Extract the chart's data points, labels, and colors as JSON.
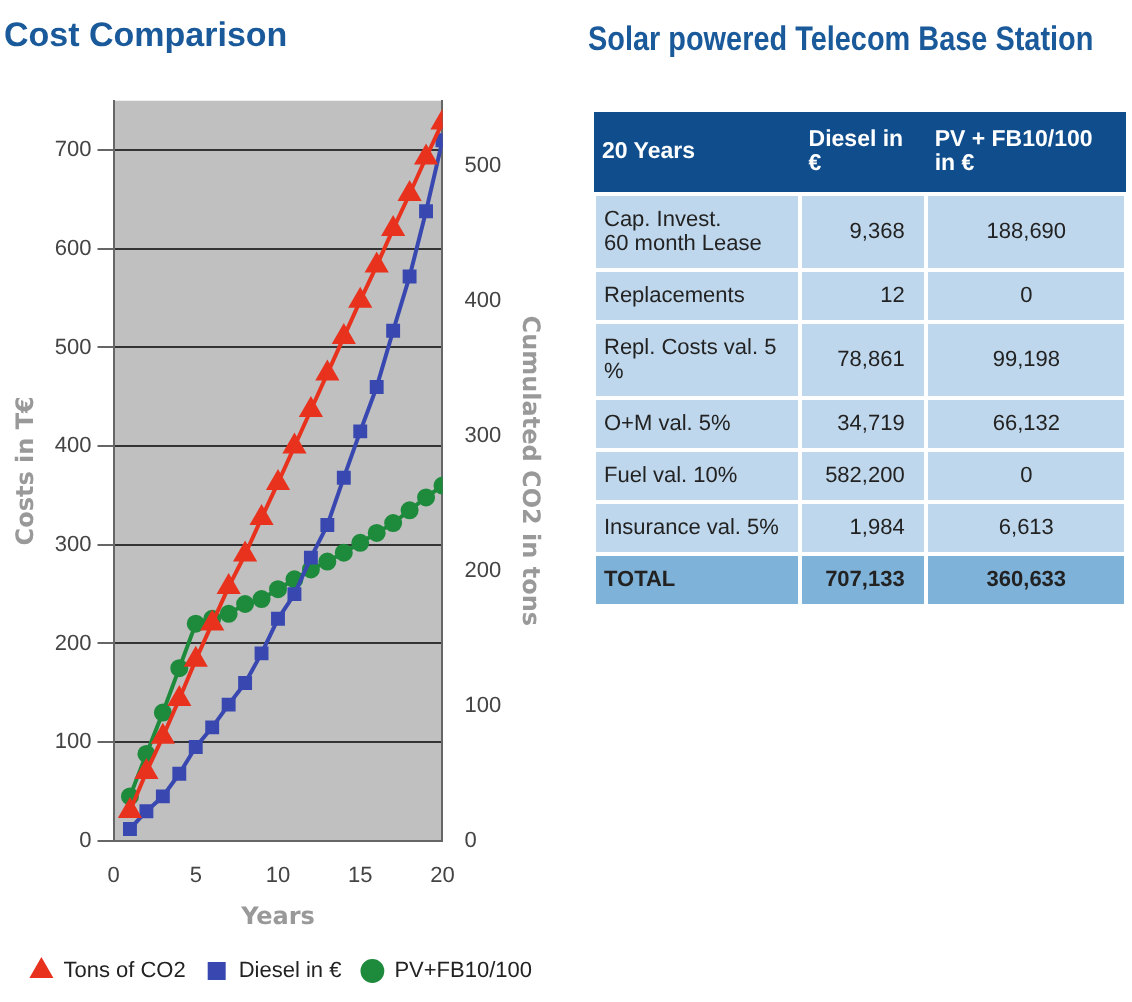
{
  "chart_data": [
    {
      "type": "line",
      "title": "Cost Comparison",
      "xlabel": "Years",
      "ylabel": "Costs in T€",
      "y2label": "Cumulated CO2 in tons",
      "x": [
        1,
        2,
        3,
        4,
        5,
        6,
        7,
        8,
        9,
        10,
        11,
        12,
        13,
        14,
        15,
        16,
        17,
        18,
        19,
        20
      ],
      "series": [
        {
          "name": "PV+FB10/100",
          "color": "#1e8a3c",
          "marker": "circle",
          "values": [
            45,
            88,
            130,
            175,
            220,
            225,
            230,
            240,
            245,
            255,
            265,
            275,
            283,
            292,
            302,
            312,
            322,
            335,
            348,
            360
          ]
        },
        {
          "name": "Diesel in €",
          "color": "#3848b0",
          "marker": "square",
          "values": [
            12,
            30,
            45,
            68,
            95,
            115,
            138,
            160,
            190,
            225,
            250,
            287,
            320,
            368,
            415,
            460,
            517,
            572,
            638,
            710
          ]
        },
        {
          "name": "Tons of CO2",
          "color": "#e8321e",
          "marker": "triangle",
          "axis": "y2",
          "values": [
            22,
            51,
            77,
            105,
            134,
            161,
            188,
            212,
            239,
            265,
            292,
            319,
            346,
            373,
            400,
            426,
            453,
            479,
            506,
            532
          ]
        }
      ],
      "xlim": [
        0,
        20
      ],
      "xticks": [
        0,
        5,
        10,
        15,
        20
      ],
      "ylim": [
        0,
        750
      ],
      "yticks": [
        0,
        100,
        200,
        300,
        400,
        500,
        600,
        700
      ],
      "y2lim": [
        0,
        548
      ],
      "y2ticks": [
        0,
        100,
        200,
        300,
        400,
        500
      ],
      "grid": "y",
      "legend": "bottom",
      "line_style": "solid"
    },
    {
      "type": "other",
      "title": "Solar powered Telecom Base Station",
      "categories": [
        "20 Years",
        "Diesel in €",
        "PV + FB10/100 in €"
      ],
      "cell_labels": [
        [
          "Cap. Invest.\n60 month Lease",
          "9,368",
          "188,690"
        ],
        [
          "Replacements",
          "12",
          "0"
        ],
        [
          "Repl. Costs val. 5 %",
          "78,861",
          "99,198"
        ],
        [
          "O+M val. 5%",
          "34,719",
          "66,132"
        ],
        [
          "Fuel val. 10%",
          "582,200",
          "0"
        ],
        [
          "Insurance val. 5%",
          "1,984",
          "6,613"
        ],
        [
          "TOTAL",
          "707,133",
          "360,633"
        ]
      ]
    }
  ]
}
